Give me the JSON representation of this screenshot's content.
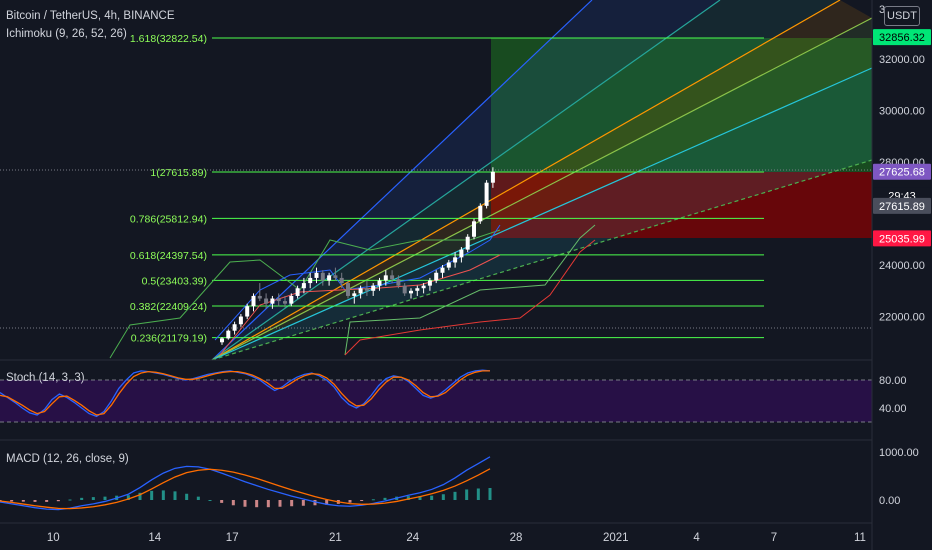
{
  "header": {
    "symbol": "Bitcoin / TetherUS, 4h, BINANCE",
    "ichimoku": "Ichimoku (9, 26, 52, 26)",
    "currency": "USDT"
  },
  "fib_levels": [
    {
      "label": "1.618(32822.54)",
      "price": 32822.54
    },
    {
      "label": "1(27615.89)",
      "price": 27615.89
    },
    {
      "label": "0.786(25812.94)",
      "price": 25812.94
    },
    {
      "label": "0.618(24397.54)",
      "price": 24397.54
    },
    {
      "label": "0.5(23403.39)",
      "price": 23403.39
    },
    {
      "label": "0.382(22409.24)",
      "price": 22409.24
    },
    {
      "label": "0.236(21179.19)",
      "price": 21179.19
    }
  ],
  "price_axis": {
    "ticks": [
      "32000.00",
      "30000.00",
      "28000.00",
      "24000.00",
      "22000.00"
    ],
    "top_partial": "3"
  },
  "price_tags": [
    {
      "text": "32856.32",
      "price": 32856.32,
      "bg": "#00e676",
      "fg": "#000000"
    },
    {
      "text": "27625.68",
      "price": 27625.68,
      "bg": "#7e57c2",
      "fg": "#ffffff"
    },
    {
      "text": "29:43",
      "price": 26700,
      "bg": "#131722",
      "fg": "#ffffff"
    },
    {
      "text": "27615.89",
      "price": 26300,
      "bg": "#4a4e5c",
      "fg": "#ffffff"
    },
    {
      "text": "25035.99",
      "price": 25035.99,
      "bg": "#ff1744",
      "fg": "#ffffff"
    }
  ],
  "stoch": {
    "label": "Stoch (14, 3, 3)",
    "ticks": [
      "80.00",
      "40.00"
    ],
    "k": [
      62,
      55,
      48,
      40,
      33,
      30,
      38,
      52,
      60,
      55,
      48,
      40,
      32,
      28,
      35,
      50,
      68,
      80,
      90,
      93,
      92,
      90,
      88,
      85,
      82,
      80,
      82,
      85,
      88,
      90,
      92,
      93,
      91,
      89,
      85,
      80,
      72,
      65,
      70,
      78,
      84,
      88,
      90,
      86,
      80,
      70,
      55,
      45,
      40,
      46,
      58,
      72,
      82,
      86,
      84,
      78,
      68,
      58,
      54,
      58,
      66,
      75,
      84,
      90,
      93,
      94,
      93
    ],
    "d": [
      58,
      56,
      50,
      44,
      37,
      32,
      35,
      46,
      56,
      57,
      51,
      44,
      36,
      30,
      32,
      44,
      60,
      74,
      85,
      90,
      92,
      91,
      89,
      86,
      83,
      81,
      81,
      83,
      86,
      89,
      91,
      92,
      92,
      90,
      87,
      82,
      76,
      68,
      68,
      74,
      81,
      86,
      89,
      88,
      83,
      74,
      61,
      50,
      43,
      44,
      53,
      66,
      77,
      84,
      84,
      80,
      72,
      62,
      56,
      57,
      62,
      71,
      80,
      87,
      91,
      93,
      93
    ]
  },
  "macd": {
    "label": "MACD (12, 26, close, 9)",
    "ticks": [
      "1000.00",
      "0.00"
    ],
    "macd_line": [
      -40,
      -80,
      -120,
      -160,
      -190,
      -200,
      -170,
      -120,
      -80,
      -30,
      40,
      120,
      260,
      420,
      560,
      660,
      700,
      690,
      640,
      560,
      470,
      380,
      300,
      220,
      150,
      80,
      20,
      -40,
      -90,
      -120,
      -130,
      -110,
      -70,
      -20,
      40,
      100,
      150,
      220,
      320,
      460,
      620,
      760,
      900
    ],
    "signal_line": [
      -20,
      -50,
      -85,
      -120,
      -150,
      -175,
      -180,
      -165,
      -140,
      -100,
      -50,
      20,
      110,
      230,
      360,
      480,
      570,
      620,
      640,
      620,
      580,
      520,
      450,
      370,
      290,
      210,
      140,
      70,
      10,
      -40,
      -75,
      -90,
      -85,
      -65,
      -30,
      20,
      70,
      130,
      200,
      290,
      400,
      520,
      650
    ],
    "histogram": [
      -20,
      -30,
      -35,
      -40,
      -40,
      -25,
      10,
      45,
      60,
      70,
      90,
      100,
      150,
      190,
      200,
      180,
      130,
      70,
      0,
      -60,
      -110,
      -140,
      -150,
      -150,
      -140,
      -130,
      -120,
      -110,
      -100,
      -80,
      -55,
      -20,
      15,
      45,
      70,
      80,
      80,
      90,
      120,
      170,
      220,
      240,
      250
    ]
  },
  "time_axis": {
    "labels": [
      {
        "text": "10",
        "frac": 0.062
      },
      {
        "text": "14",
        "frac": 0.18
      },
      {
        "text": "17",
        "frac": 0.27
      },
      {
        "text": "21",
        "frac": 0.39
      },
      {
        "text": "24",
        "frac": 0.48
      },
      {
        "text": "28",
        "frac": 0.6
      },
      {
        "text": "2021",
        "frac": 0.716
      },
      {
        "text": "4",
        "frac": 0.81
      },
      {
        "text": "7",
        "frac": 0.9
      },
      {
        "text": "11",
        "frac": 1.0
      }
    ]
  },
  "candles": [
    [
      21000,
      21200,
      20900,
      21150
    ],
    [
      21150,
      21500,
      21100,
      21450
    ],
    [
      21450,
      21800,
      21300,
      21700
    ],
    [
      21700,
      22100,
      21600,
      22000
    ],
    [
      22000,
      22500,
      21900,
      22400
    ],
    [
      22400,
      22900,
      22200,
      22800
    ],
    [
      22800,
      23300,
      22600,
      22700
    ],
    [
      22700,
      22900,
      22300,
      22500
    ],
    [
      22500,
      22800,
      22300,
      22700
    ],
    [
      22700,
      22900,
      22400,
      22600
    ],
    [
      22600,
      22800,
      22350,
      22500
    ],
    [
      22500,
      22900,
      22400,
      22800
    ],
    [
      22800,
      23200,
      22700,
      23100
    ],
    [
      23100,
      23500,
      22900,
      23300
    ],
    [
      23300,
      23700,
      23100,
      23500
    ],
    [
      23500,
      23900,
      23300,
      23700
    ],
    [
      23700,
      23800,
      23200,
      23400
    ],
    [
      23400,
      23700,
      23200,
      23600
    ],
    [
      23600,
      23900,
      23400,
      23500
    ],
    [
      23500,
      23700,
      23100,
      23300
    ],
    [
      23300,
      23400,
      22700,
      22800
    ],
    [
      22800,
      23000,
      22500,
      22900
    ],
    [
      22900,
      23200,
      22700,
      23100
    ],
    [
      23100,
      23400,
      22800,
      23000
    ],
    [
      23000,
      23300,
      22800,
      23200
    ],
    [
      23200,
      23500,
      23000,
      23400
    ],
    [
      23400,
      23800,
      23200,
      23600
    ],
    [
      23600,
      23800,
      23300,
      23450
    ],
    [
      23450,
      23600,
      23100,
      23200
    ],
    [
      23200,
      23300,
      22800,
      22900
    ],
    [
      22900,
      23100,
      22700,
      23000
    ],
    [
      23000,
      23200,
      22800,
      23100
    ],
    [
      23100,
      23300,
      22900,
      23200
    ],
    [
      23200,
      23500,
      23000,
      23400
    ],
    [
      23400,
      23800,
      23300,
      23700
    ],
    [
      23700,
      24000,
      23500,
      23900
    ],
    [
      23900,
      24200,
      23800,
      24100
    ],
    [
      24100,
      24500,
      23900,
      24300
    ],
    [
      24300,
      24700,
      24100,
      24600
    ],
    [
      24600,
      25200,
      24500,
      25100
    ],
    [
      25100,
      25800,
      25000,
      25700
    ],
    [
      25700,
      26400,
      25600,
      26300
    ],
    [
      26300,
      27300,
      26200,
      27200
    ],
    [
      27200,
      27800,
      27000,
      27625
    ]
  ]
}
